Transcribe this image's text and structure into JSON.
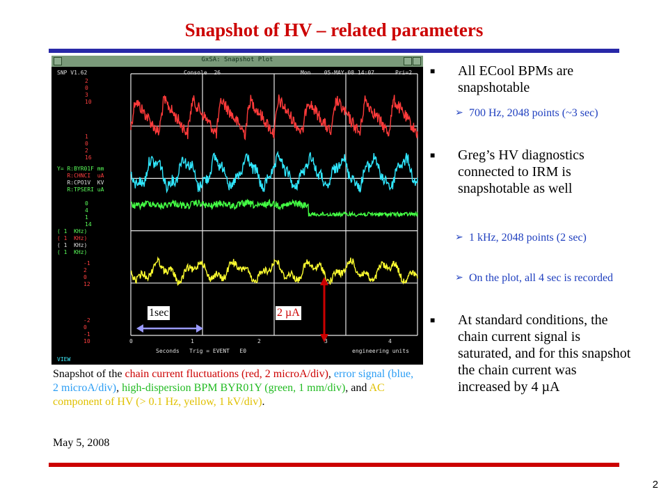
{
  "title": "Snapshot of HV – related parameters",
  "page_number": "2",
  "snapshot": {
    "window_title": "GxSA: Snapshot Plot",
    "version": "SNP V1.62",
    "console": "Console  26",
    "date": "Mon    05-MAY-08 14:07",
    "priority": "Pri=2",
    "y_axis_1": "2\n0\n3\n10",
    "y_axis_2": "1\n0\n2\n16",
    "y_axis_3": "0\n4\n1\n14",
    "y_axis_4": "-1\n2\n0\n12",
    "y_axis_5": "-2\n0\n-1\n10",
    "legend": [
      {
        "name": "Y= R:BYR01F mm",
        "color": "#5bff5b"
      },
      {
        "name": "   R:CHNCI  uA",
        "color": "#ff4040"
      },
      {
        "name": "   R:CPO1V  KV",
        "color": "#e0e0e0"
      },
      {
        "name": "   R:TPSERI uA",
        "color": "#5bff5b"
      }
    ],
    "rates": [
      "( 1  KHz)",
      "( 1  KHz)",
      "( 1  KHz)",
      "( 1  KHz)"
    ],
    "x_ticks": [
      "0",
      "1",
      "2",
      "3",
      "4"
    ],
    "x_label": "Seconds   Trig = EVENT   E0",
    "units_label": "engineering units",
    "view_label": "VIEW",
    "label_1sec": "1sec",
    "label_2ua": "2 µA"
  },
  "caption": {
    "p0": "Snapshot of the ",
    "red": "chain current fluctuations (red, 2 microA/div)",
    "p1": ", ",
    "blue": "error signal (blue, 2 microA/div)",
    "p2": ", ",
    "green": "high-dispersion BPM BYR01Y (green, 1 mm/div)",
    "p3": ", and ",
    "yellow": "AC component of HV (> 0.1 Hz, yellow, 1 kV/div)",
    "p4": "."
  },
  "date_text": "May 5, 2008",
  "bullets": [
    {
      "text": "All ECool BPMs are snapshotable"
    },
    {
      "text": "700 Hz, 2048 points (~3 sec)"
    },
    {
      "text": "Greg’s HV diagnostics connected to IRM is snapshotable as well"
    },
    {
      "text": "1 kHz, 2048 points (2 sec)"
    },
    {
      "text": "On the plot, all 4 sec is recorded"
    },
    {
      "text": "At standard conditions, the chain current signal is saturated, and for this snapshot the chain current was increased by 4 µA"
    }
  ],
  "colors": {
    "title": "#cc0000",
    "top_rule": "#2828a8",
    "bottom_rule": "#cc0000",
    "sub_bullet": "#1f3fbf"
  }
}
